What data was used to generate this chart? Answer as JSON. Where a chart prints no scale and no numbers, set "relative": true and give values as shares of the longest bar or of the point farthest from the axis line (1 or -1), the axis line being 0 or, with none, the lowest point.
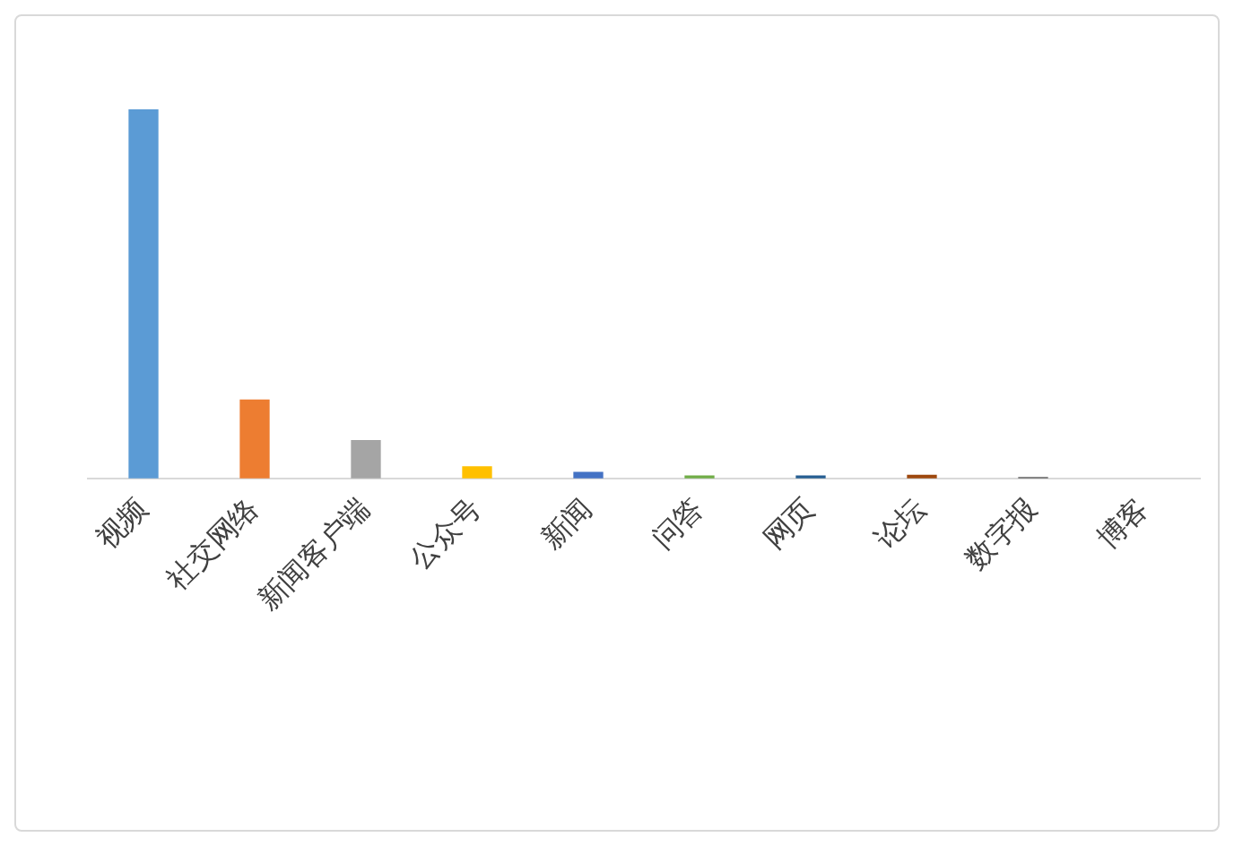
{
  "chart_data": {
    "type": "bar",
    "relative": true,
    "categories": [
      "视频",
      "社交网络",
      "新闻客户端",
      "公众号",
      "新闻",
      "问答",
      "网页",
      "论坛",
      "数字报",
      "博客"
    ],
    "values": [
      1,
      0.212,
      0.102,
      0.031,
      0.016,
      0.006,
      0.006,
      0.008,
      0.002,
      null
    ],
    "colors": [
      "#5b9bd5",
      "#ed7d31",
      "#a5a5a5",
      "#ffc000",
      "#4472c4",
      "#70ad47",
      "#255e91",
      "#9e480e",
      "#636363",
      "#997300"
    ],
    "grid": false,
    "legend": false
  }
}
